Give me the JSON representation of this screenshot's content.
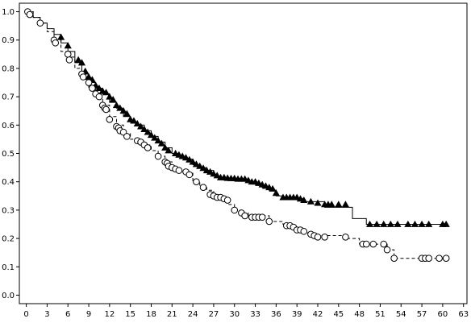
{
  "chart_data": {
    "type": "line",
    "title": "",
    "xlabel": "",
    "ylabel": "",
    "xlim": [
      -1,
      63.5
    ],
    "ylim": [
      -0.03,
      1.03
    ],
    "x_ticks": [
      0,
      3,
      6,
      9,
      12,
      15,
      18,
      21,
      24,
      27,
      30,
      33,
      36,
      39,
      42,
      45,
      48,
      51,
      54,
      57,
      60,
      63
    ],
    "y_ticks": [
      0.0,
      0.1,
      0.2,
      0.3,
      0.4,
      0.5,
      0.6,
      0.7,
      0.8,
      0.9,
      1.0
    ],
    "grid": false,
    "legend": "none",
    "series": [
      {
        "line_style": "solid",
        "marker": "filled-triangle",
        "color": "#000000",
        "steps": [
          [
            0,
            1.0
          ],
          [
            0.5,
            0.99
          ],
          [
            1,
            0.98
          ],
          [
            2,
            0.96
          ],
          [
            3,
            0.94
          ],
          [
            4,
            0.92
          ],
          [
            5,
            0.89
          ],
          [
            6,
            0.86
          ],
          [
            7,
            0.82
          ],
          [
            8,
            0.78
          ],
          [
            9,
            0.75
          ],
          [
            10,
            0.73
          ],
          [
            11,
            0.71
          ],
          [
            12,
            0.68
          ],
          [
            13,
            0.66
          ],
          [
            14,
            0.63
          ],
          [
            15,
            0.61
          ],
          [
            16,
            0.6
          ],
          [
            17,
            0.58
          ],
          [
            18,
            0.56
          ],
          [
            19,
            0.54
          ],
          [
            20,
            0.52
          ],
          [
            21,
            0.5
          ],
          [
            22,
            0.49
          ],
          [
            23,
            0.48
          ],
          [
            24,
            0.46
          ],
          [
            25,
            0.45
          ],
          [
            26,
            0.44
          ],
          [
            27,
            0.42
          ],
          [
            28,
            0.41
          ],
          [
            32,
            0.4
          ],
          [
            33,
            0.39
          ],
          [
            34,
            0.38
          ],
          [
            35,
            0.37
          ],
          [
            36,
            0.35
          ],
          [
            37,
            0.34
          ],
          [
            40,
            0.33
          ],
          [
            43,
            0.31
          ],
          [
            47,
            0.27
          ],
          [
            49,
            0.25
          ],
          [
            60.5,
            0.25
          ]
        ],
        "censored": [
          [
            5,
            0.91
          ],
          [
            6,
            0.88
          ],
          [
            7.5,
            0.83
          ],
          [
            8,
            0.82
          ],
          [
            8.5,
            0.79
          ],
          [
            9,
            0.77
          ],
          [
            9.5,
            0.76
          ],
          [
            10,
            0.74
          ],
          [
            10.5,
            0.73
          ],
          [
            11,
            0.72
          ],
          [
            11.5,
            0.715
          ],
          [
            12,
            0.7
          ],
          [
            12.5,
            0.69
          ],
          [
            13,
            0.67
          ],
          [
            13.5,
            0.66
          ],
          [
            14,
            0.65
          ],
          [
            14.5,
            0.64
          ],
          [
            15,
            0.62
          ],
          [
            15.5,
            0.615
          ],
          [
            16,
            0.605
          ],
          [
            16.5,
            0.595
          ],
          [
            17,
            0.585
          ],
          [
            17.5,
            0.575
          ],
          [
            18,
            0.565
          ],
          [
            18.5,
            0.555
          ],
          [
            19,
            0.545
          ],
          [
            19.5,
            0.535
          ],
          [
            20,
            0.52
          ],
          [
            20.5,
            0.51
          ],
          [
            21.5,
            0.5
          ],
          [
            22,
            0.495
          ],
          [
            22.5,
            0.49
          ],
          [
            23,
            0.485
          ],
          [
            23.5,
            0.478
          ],
          [
            24,
            0.47
          ],
          [
            24.5,
            0.462
          ],
          [
            25,
            0.455
          ],
          [
            25.5,
            0.448
          ],
          [
            26,
            0.44
          ],
          [
            26.5,
            0.435
          ],
          [
            27,
            0.428
          ],
          [
            27.5,
            0.422
          ],
          [
            28,
            0.415
          ],
          [
            28.5,
            0.415
          ],
          [
            29,
            0.413
          ],
          [
            29.5,
            0.412
          ],
          [
            30,
            0.412
          ],
          [
            30.5,
            0.41
          ],
          [
            31,
            0.41
          ],
          [
            31.5,
            0.41
          ],
          [
            32,
            0.405
          ],
          [
            32.5,
            0.4
          ],
          [
            33,
            0.4
          ],
          [
            33.5,
            0.395
          ],
          [
            34,
            0.39
          ],
          [
            34.5,
            0.385
          ],
          [
            35,
            0.38
          ],
          [
            35.5,
            0.375
          ],
          [
            36,
            0.36
          ],
          [
            37,
            0.345
          ],
          [
            37.5,
            0.345
          ],
          [
            38,
            0.345
          ],
          [
            38.5,
            0.345
          ],
          [
            39,
            0.345
          ],
          [
            39.5,
            0.34
          ],
          [
            40,
            0.335
          ],
          [
            41,
            0.33
          ],
          [
            42,
            0.325
          ],
          [
            43,
            0.32
          ],
          [
            43.5,
            0.32
          ],
          [
            44,
            0.32
          ],
          [
            45,
            0.32
          ],
          [
            46,
            0.32
          ],
          [
            49.5,
            0.25
          ],
          [
            50.5,
            0.25
          ],
          [
            51.5,
            0.25
          ],
          [
            52.5,
            0.25
          ],
          [
            53.5,
            0.25
          ],
          [
            55,
            0.25
          ],
          [
            56,
            0.25
          ],
          [
            57,
            0.25
          ],
          [
            58,
            0.25
          ],
          [
            60,
            0.25
          ],
          [
            60.5,
            0.25
          ]
        ]
      },
      {
        "line_style": "dashed",
        "marker": "open-circle",
        "color": "#000000",
        "steps": [
          [
            0,
            1.0
          ],
          [
            1,
            0.98
          ],
          [
            2,
            0.96
          ],
          [
            3,
            0.93
          ],
          [
            4,
            0.9
          ],
          [
            5,
            0.86
          ],
          [
            6,
            0.84
          ],
          [
            7,
            0.8
          ],
          [
            8,
            0.77
          ],
          [
            9,
            0.73
          ],
          [
            10,
            0.7
          ],
          [
            11,
            0.67
          ],
          [
            12,
            0.63
          ],
          [
            13,
            0.6
          ],
          [
            14,
            0.57
          ],
          [
            15,
            0.55
          ],
          [
            16,
            0.54
          ],
          [
            17,
            0.53
          ],
          [
            18,
            0.51
          ],
          [
            19,
            0.49
          ],
          [
            20,
            0.47
          ],
          [
            21,
            0.45
          ],
          [
            22,
            0.44
          ],
          [
            23,
            0.43
          ],
          [
            24,
            0.4
          ],
          [
            25,
            0.38
          ],
          [
            26,
            0.37
          ],
          [
            27,
            0.35
          ],
          [
            28,
            0.34
          ],
          [
            29,
            0.32
          ],
          [
            30,
            0.3
          ],
          [
            31,
            0.29
          ],
          [
            32,
            0.28
          ],
          [
            35,
            0.26
          ],
          [
            37,
            0.25
          ],
          [
            38,
            0.24
          ],
          [
            39,
            0.23
          ],
          [
            40,
            0.22
          ],
          [
            41,
            0.21
          ],
          [
            46,
            0.2
          ],
          [
            48,
            0.18
          ],
          [
            50,
            0.18
          ],
          [
            52,
            0.16
          ],
          [
            53,
            0.13
          ],
          [
            60.5,
            0.13
          ]
        ],
        "censored": [
          [
            0.2,
            1.0
          ],
          [
            0.5,
            0.99
          ],
          [
            2,
            0.96
          ],
          [
            4,
            0.9
          ],
          [
            4.2,
            0.89
          ],
          [
            6,
            0.85
          ],
          [
            6.2,
            0.83
          ],
          [
            8,
            0.78
          ],
          [
            8.2,
            0.77
          ],
          [
            9,
            0.75
          ],
          [
            9.5,
            0.73
          ],
          [
            10,
            0.71
          ],
          [
            10.5,
            0.7
          ],
          [
            11,
            0.67
          ],
          [
            11.3,
            0.66
          ],
          [
            11.5,
            0.655
          ],
          [
            12,
            0.62
          ],
          [
            13,
            0.595
          ],
          [
            13.3,
            0.59
          ],
          [
            13.5,
            0.58
          ],
          [
            14,
            0.575
          ],
          [
            14.5,
            0.56
          ],
          [
            16,
            0.545
          ],
          [
            16.5,
            0.54
          ],
          [
            17,
            0.53
          ],
          [
            17.5,
            0.52
          ],
          [
            19,
            0.49
          ],
          [
            20,
            0.47
          ],
          [
            20.3,
            0.465
          ],
          [
            20.5,
            0.455
          ],
          [
            21,
            0.45
          ],
          [
            21.5,
            0.445
          ],
          [
            22,
            0.44
          ],
          [
            23,
            0.435
          ],
          [
            23.5,
            0.425
          ],
          [
            24.5,
            0.4
          ],
          [
            25.5,
            0.38
          ],
          [
            26.5,
            0.355
          ],
          [
            27,
            0.35
          ],
          [
            27.5,
            0.345
          ],
          [
            28,
            0.345
          ],
          [
            28.5,
            0.34
          ],
          [
            29,
            0.335
          ],
          [
            30,
            0.3
          ],
          [
            31,
            0.29
          ],
          [
            31.5,
            0.28
          ],
          [
            32.5,
            0.275
          ],
          [
            33,
            0.275
          ],
          [
            33.5,
            0.275
          ],
          [
            34,
            0.275
          ],
          [
            35,
            0.26
          ],
          [
            37.5,
            0.245
          ],
          [
            38,
            0.245
          ],
          [
            38.5,
            0.24
          ],
          [
            39,
            0.23
          ],
          [
            39.5,
            0.23
          ],
          [
            40,
            0.225
          ],
          [
            41,
            0.215
          ],
          [
            41.5,
            0.21
          ],
          [
            42,
            0.205
          ],
          [
            43,
            0.205
          ],
          [
            46,
            0.205
          ],
          [
            48.5,
            0.18
          ],
          [
            49,
            0.18
          ],
          [
            50,
            0.18
          ],
          [
            51.5,
            0.18
          ],
          [
            52,
            0.16
          ],
          [
            53,
            0.13
          ],
          [
            57,
            0.13
          ],
          [
            57.5,
            0.13
          ],
          [
            58,
            0.13
          ],
          [
            59.5,
            0.13
          ],
          [
            60.5,
            0.13
          ]
        ]
      }
    ]
  }
}
